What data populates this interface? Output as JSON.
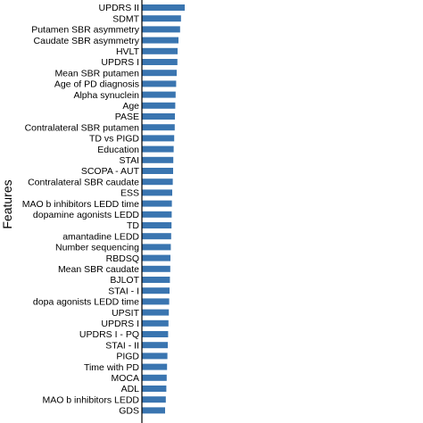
{
  "chart_data": {
    "type": "bar",
    "orientation": "horizontal",
    "ylabel": "Features",
    "xlabel": "",
    "bar_color": "#3A75B0",
    "grid": false,
    "xlim": [
      0,
      0.05
    ],
    "categories": [
      "UPDRS II",
      "SDMT",
      "Putamen SBR asymmetry",
      "Caudate SBR asymmetry",
      "HVLT",
      "UPDRS I",
      "Mean SBR putamen",
      "Age of PD diagnosis",
      "Alpha synuclein",
      "Age",
      "PASE",
      "Contralateral SBR putamen",
      "TD vs PIGD",
      "Education",
      "STAI",
      "SCOPA - AUT",
      "Contralateral SBR caudate",
      "ESS",
      "MAO b inhibitors LEDD time",
      "dopamine agonists LEDD",
      "TD",
      "amantadine LEDD",
      "Number sequencing",
      "RBDSQ",
      "Mean SBR caudate",
      "BJLOT",
      "STAI - I",
      "dopa agonists LEDD time",
      "UPSIT",
      "UPDRS I",
      "UPDRS I - PQ",
      "STAI - II",
      "PIGD",
      "Time with PD",
      "MOCA",
      "ADL",
      "MAO b inhibitors LEDD",
      "GDS"
    ],
    "values": [
      0.048,
      0.0438,
      0.0428,
      0.041,
      0.04,
      0.0398,
      0.039,
      0.0384,
      0.0378,
      0.0374,
      0.037,
      0.0368,
      0.0362,
      0.0356,
      0.0352,
      0.035,
      0.0346,
      0.034,
      0.0336,
      0.0334,
      0.0332,
      0.0328,
      0.0324,
      0.032,
      0.0318,
      0.0314,
      0.031,
      0.0306,
      0.0302,
      0.0298,
      0.0294,
      0.029,
      0.0286,
      0.0282,
      0.0278,
      0.0274,
      0.0268,
      0.026
    ]
  }
}
